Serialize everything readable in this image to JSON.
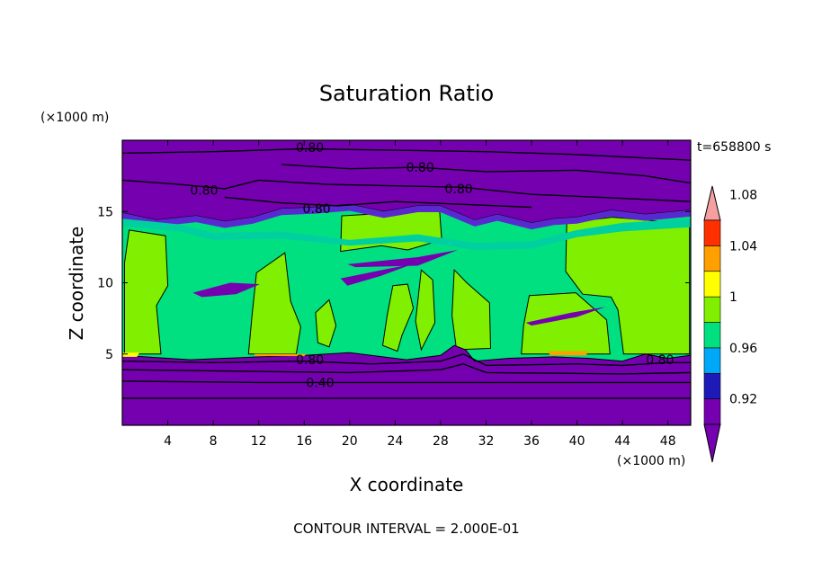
{
  "chart_data": {
    "type": "heatmap",
    "title": "Saturation Ratio",
    "xlabel": "X coordinate",
    "ylabel": "Z coordinate",
    "x_unit": "(×1000 m)",
    "y_unit": "(×1000 m)",
    "time_label": "t=658800 s",
    "footer": "CONTOUR INTERVAL = 2.000E-01",
    "xlim": [
      0,
      50
    ],
    "ylim": [
      0,
      20
    ],
    "x_ticks": [
      4,
      8,
      12,
      16,
      20,
      24,
      28,
      32,
      36,
      40,
      44,
      48
    ],
    "y_ticks": [
      5,
      10,
      15
    ],
    "contour_labels": [
      {
        "text": "0.80",
        "x": 16.5,
        "y": 19.5
      },
      {
        "text": "0.80",
        "x": 26.2,
        "y": 18.1
      },
      {
        "text": "0.80",
        "x": 7.2,
        "y": 16.5
      },
      {
        "text": "0.80",
        "x": 29.6,
        "y": 16.6
      },
      {
        "text": "0.80",
        "x": 17.1,
        "y": 15.2
      },
      {
        "text": "0.80",
        "x": 16.5,
        "y": 4.6
      },
      {
        "text": "0.80",
        "x": 47.3,
        "y": 4.6
      },
      {
        "text": "0.40",
        "x": 17.4,
        "y": 3.0
      }
    ],
    "colorbar": {
      "levels": [
        "0.92",
        "0.96",
        "1",
        "1.04",
        "1.08"
      ],
      "colors": [
        "#7500b0",
        "#1d1ab8",
        "#00a8f8",
        "#00e080",
        "#80f000",
        "#ffff00",
        "#ffa000",
        "#ff3000",
        "#ff0000",
        "#f5a0a0"
      ]
    },
    "fill_colors": {
      "very_low": "#7500b0",
      "low_band": "#5a28d0",
      "mid": "#00e080",
      "high": "#80f000",
      "yellow": "#ffff00",
      "orange": "#ffa000"
    }
  }
}
